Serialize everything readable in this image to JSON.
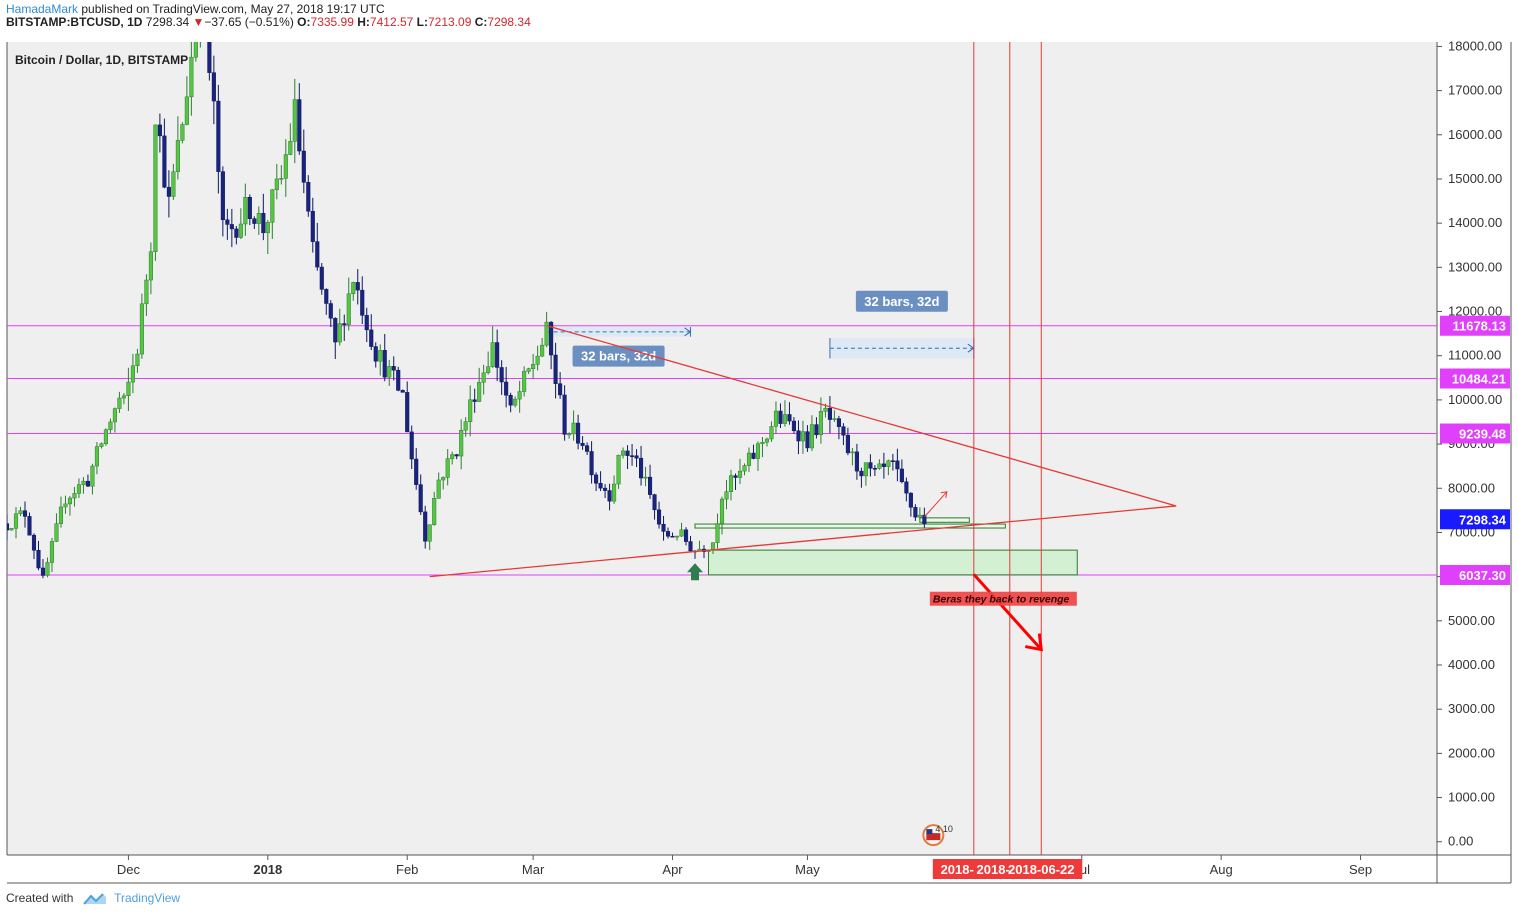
{
  "header": {
    "author": "HamadaMark",
    "published": "published on TradingView.com, May 27, 2018 19:17 UTC",
    "symbol": "BITSTAMP:BTCUSD, 1D",
    "last": "7298.34",
    "change": "−37.65 (−0.51%)",
    "o_label": "O:",
    "o": "7335.99",
    "h_label": "H:",
    "h": "7412.57",
    "l_label": "L:",
    "l": "7213.09",
    "c_label": "C:",
    "c": "7298.34"
  },
  "footer": {
    "created_with": "Created with",
    "brand": "TradingView"
  },
  "chart_data": {
    "type": "candlestick",
    "title": "Bitcoin / Dollar, 1D, BITSTAMP",
    "ylim": [
      -300,
      18100
    ],
    "y_ticks": [
      0,
      1000,
      2000,
      3000,
      4000,
      5000,
      6000,
      7000,
      8000,
      9000,
      10000,
      11000,
      12000,
      13000,
      14000,
      15000,
      16000,
      17000,
      18000
    ],
    "y_tick_labels": [
      "0.00",
      "1000.00",
      "2000.00",
      "3000.00",
      "4000.00",
      "5000.00",
      "6000.00",
      "7000.00",
      "8000.00",
      "9000.00",
      "10000.00",
      "11000.00",
      "12000.00",
      "13000.00",
      "14000.00",
      "15000.00",
      "16000.00",
      "17000.00",
      "18000.00"
    ],
    "x_range": [
      "2017-11-04",
      "2018-09-18"
    ],
    "x_ticks": [
      {
        "date": "2017-12-01",
        "label": "Dec",
        "bold": false
      },
      {
        "date": "2018-01-01",
        "label": "2018",
        "bold": true
      },
      {
        "date": "2018-02-01",
        "label": "Feb",
        "bold": false
      },
      {
        "date": "2018-03-01",
        "label": "Mar",
        "bold": false
      },
      {
        "date": "2018-04-01",
        "label": "Apr",
        "bold": false
      },
      {
        "date": "2018-05-01",
        "label": "May",
        "bold": false
      },
      {
        "date": "2018-07-01",
        "label": "Jul",
        "bold": false
      },
      {
        "date": "2018-08-01",
        "label": "Aug",
        "bold": false
      },
      {
        "date": "2018-09-01",
        "label": "Sep",
        "bold": false
      }
    ],
    "price_path": [
      [
        "2017-11-04",
        7200
      ],
      [
        "2017-11-08",
        7450
      ],
      [
        "2017-11-12",
        5900
      ],
      [
        "2017-11-17",
        7800
      ],
      [
        "2017-11-22",
        8200
      ],
      [
        "2017-11-26",
        9300
      ],
      [
        "2017-11-29",
        10000
      ],
      [
        "2017-11-30",
        9900
      ],
      [
        "2017-12-03",
        11200
      ],
      [
        "2017-12-06",
        13600
      ],
      [
        "2017-12-07",
        16600
      ],
      [
        "2017-12-10",
        14400
      ],
      [
        "2017-12-13",
        16300
      ],
      [
        "2017-12-17",
        19300
      ],
      [
        "2017-12-20",
        16500
      ],
      [
        "2017-12-22",
        13800
      ],
      [
        "2017-12-24",
        13900
      ],
      [
        "2017-12-28",
        14400
      ],
      [
        "2017-12-31",
        13900
      ],
      [
        "2018-01-04",
        15000
      ],
      [
        "2018-01-07",
        16500
      ],
      [
        "2018-01-11",
        13300
      ],
      [
        "2018-01-16",
        11200
      ],
      [
        "2018-01-20",
        12800
      ],
      [
        "2018-01-25",
        11100
      ],
      [
        "2018-01-31",
        10100
      ],
      [
        "2018-02-02",
        8700
      ],
      [
        "2018-02-05",
        6900
      ],
      [
        "2018-02-08",
        8200
      ],
      [
        "2018-02-12",
        8900
      ],
      [
        "2018-02-16",
        10200
      ],
      [
        "2018-02-20",
        11200
      ],
      [
        "2018-02-24",
        9700
      ],
      [
        "2018-02-27",
        10400
      ],
      [
        "2018-03-04",
        11500
      ],
      [
        "2018-03-08",
        9400
      ],
      [
        "2018-03-12",
        9100
      ],
      [
        "2018-03-15",
        8200
      ],
      [
        "2018-03-18",
        7900
      ],
      [
        "2018-03-21",
        8900
      ],
      [
        "2018-03-24",
        8600
      ],
      [
        "2018-03-27",
        7800
      ],
      [
        "2018-03-30",
        6900
      ],
      [
        "2018-04-02",
        7000
      ],
      [
        "2018-04-06",
        6600
      ],
      [
        "2018-04-10",
        6800
      ],
      [
        "2018-04-12",
        7900
      ],
      [
        "2018-04-16",
        8300
      ],
      [
        "2018-04-20",
        8900
      ],
      [
        "2018-04-24",
        9600
      ],
      [
        "2018-04-28",
        9400
      ],
      [
        "2018-05-01",
        9100
      ],
      [
        "2018-05-05",
        9700
      ],
      [
        "2018-05-08",
        9200
      ],
      [
        "2018-05-12",
        8500
      ],
      [
        "2018-05-16",
        8300
      ],
      [
        "2018-05-20",
        8500
      ],
      [
        "2018-05-22",
        8000
      ],
      [
        "2018-05-25",
        7400
      ],
      [
        "2018-05-27",
        7300
      ]
    ],
    "horizontal_lines": [
      {
        "value": 11678.13,
        "label": "11678.13",
        "color": "#e040fb"
      },
      {
        "value": 10484.21,
        "label": "10484.21",
        "color": "#e040fb"
      },
      {
        "value": 9239.48,
        "label": "9239.48",
        "color": "#e040fb"
      },
      {
        "value": 6037.3,
        "label": "6037.30",
        "color": "#e040fb"
      }
    ],
    "last_price": {
      "value": 7298.34,
      "label": "7298.34",
      "color": "#1a1aff"
    },
    "trendlines": [
      {
        "from": [
          "2018-03-04",
          11680
        ],
        "to": [
          "2018-07-22",
          7600
        ]
      },
      {
        "from": [
          "2018-02-06",
          6000
        ],
        "to": [
          "2018-07-22",
          7600
        ]
      }
    ],
    "zones": [
      {
        "from": [
          "2018-04-09",
          6600
        ],
        "to": [
          "2018-06-30",
          6040
        ],
        "color": "#d4f0d4"
      },
      {
        "from": [
          "2018-04-06",
          7100
        ],
        "to": [
          "2018-06-14",
          7190
        ],
        "color": "#eaf7ea"
      },
      {
        "from": [
          "2018-05-26",
          7230
        ],
        "to": [
          "2018-06-06",
          7330
        ],
        "color": "#eaf7ea"
      }
    ],
    "range_measures": [
      {
        "from": [
          "2018-03-04",
          11650
        ],
        "to": [
          "2018-04-05",
          11430
        ],
        "label": "32 bars, 32d",
        "label_at": [
          "2018-03-20",
          10980
        ]
      },
      {
        "from": [
          "2018-05-06",
          11400
        ],
        "to": [
          "2018-06-07",
          10940
        ],
        "label": "32 bars, 32d",
        "label_at": [
          "2018-05-22",
          12220
        ]
      }
    ],
    "vertical_lines": [
      {
        "date": "2018-06-07",
        "label": "2018-"
      },
      {
        "date": "2018-06-15",
        "label": "2018-"
      },
      {
        "date": "2018-06-22",
        "label": "2018-06-22"
      }
    ],
    "annotation": {
      "text": "Beras they back to revenge",
      "at": [
        "2018-06-07",
        5500
      ]
    },
    "up_arrow": {
      "at": [
        "2018-04-06",
        6100
      ]
    },
    "small_arrow": {
      "from": [
        "2018-05-27",
        7350
      ],
      "to": [
        "2018-06-01",
        7920
      ]
    },
    "down_arrow": {
      "from": [
        "2018-06-07",
        6050
      ],
      "to": [
        "2018-06-22",
        4350
      ]
    },
    "events_badge": {
      "text": "4 10",
      "at": [
        "2018-05-29",
        150
      ]
    }
  }
}
